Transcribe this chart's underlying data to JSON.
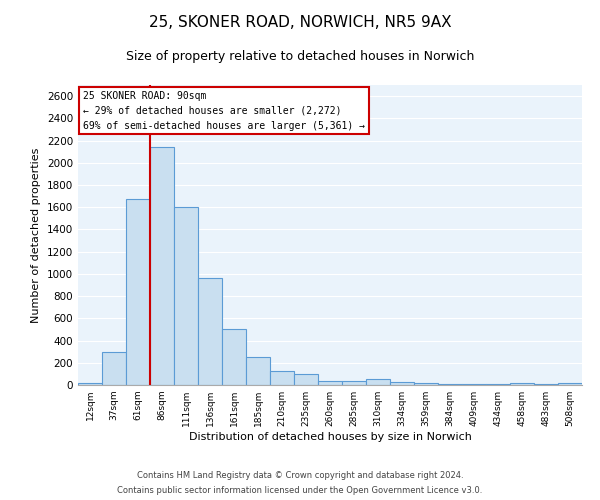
{
  "title1": "25, SKONER ROAD, NORWICH, NR5 9AX",
  "title2": "Size of property relative to detached houses in Norwich",
  "xlabel": "Distribution of detached houses by size in Norwich",
  "ylabel": "Number of detached properties",
  "bin_labels": [
    "12sqm",
    "37sqm",
    "61sqm",
    "86sqm",
    "111sqm",
    "136sqm",
    "161sqm",
    "185sqm",
    "210sqm",
    "235sqm",
    "260sqm",
    "285sqm",
    "310sqm",
    "334sqm",
    "359sqm",
    "384sqm",
    "409sqm",
    "434sqm",
    "458sqm",
    "483sqm",
    "508sqm"
  ],
  "bar_heights": [
    20,
    295,
    1670,
    2145,
    1600,
    965,
    505,
    255,
    125,
    100,
    40,
    40,
    55,
    30,
    20,
    10,
    8,
    5,
    20,
    5,
    20
  ],
  "bar_color": "#c9dff0",
  "bar_edgecolor": "#5b9bd5",
  "vline_x": 3,
  "vline_color": "#cc0000",
  "ylim": [
    0,
    2700
  ],
  "yticks": [
    0,
    200,
    400,
    600,
    800,
    1000,
    1200,
    1400,
    1600,
    1800,
    2000,
    2200,
    2400,
    2600
  ],
  "annotation_title": "25 SKONER ROAD: 90sqm",
  "annotation_line1": "← 29% of detached houses are smaller (2,272)",
  "annotation_line2": "69% of semi-detached houses are larger (5,361) →",
  "footnote1": "Contains HM Land Registry data © Crown copyright and database right 2024.",
  "footnote2": "Contains public sector information licensed under the Open Government Licence v3.0.",
  "bg_color": "#eaf3fb",
  "grid_color": "#ffffff",
  "title1_fontsize": 11,
  "title2_fontsize": 9
}
